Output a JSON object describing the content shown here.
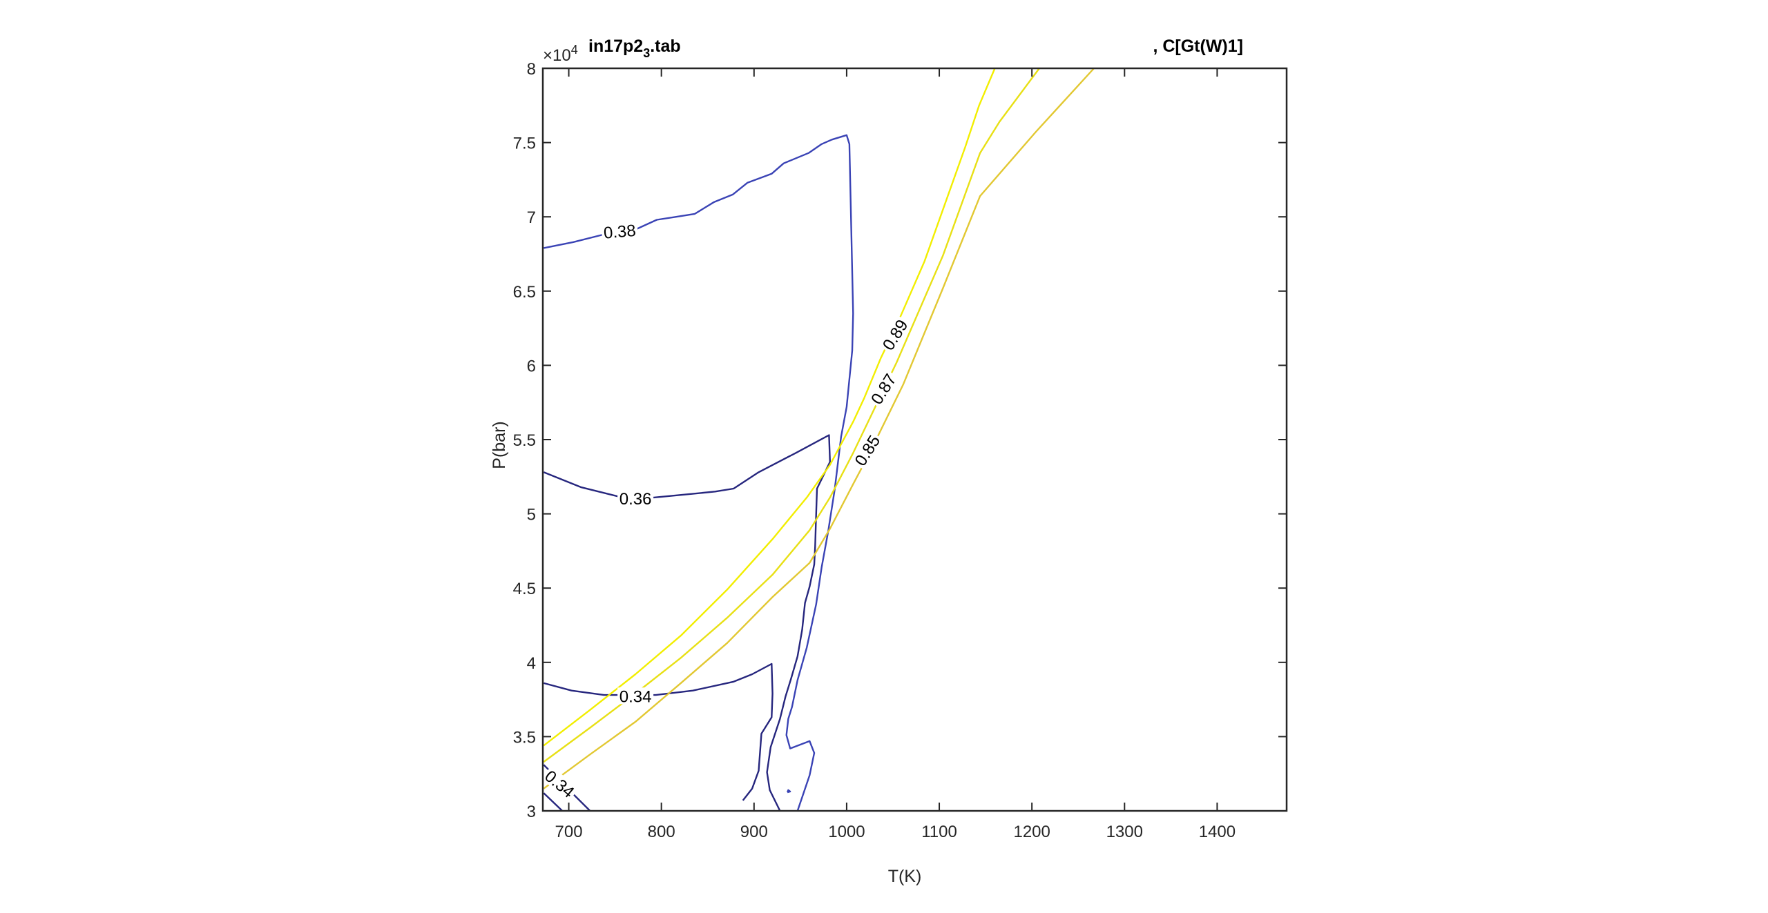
{
  "chart_data": {
    "type": "line",
    "subtype": "contour",
    "title_left": "in17p2",
    "title_left_subscript": "3",
    "title_left_suffix": ".tab",
    "title_right": ", C[Gt(W)1]",
    "xlabel": "T(K)",
    "ylabel": "P(bar)",
    "y_multiplier_base": "×10",
    "y_multiplier_exp": "4",
    "xlim": [
      672,
      1475
    ],
    "ylim": [
      3,
      8
    ],
    "xticks": [
      "700",
      "800",
      "900",
      "1000",
      "1100",
      "1200",
      "1300",
      "1400"
    ],
    "yticks": [
      "3",
      "3.5",
      "4",
      "4.5",
      "5",
      "5.5",
      "6",
      "6.5",
      "7",
      "7.5",
      "8"
    ],
    "grid": false,
    "colors": {
      "blue_light": "#3a43b5",
      "blue_dark": "#26267e",
      "yellow_89": "#f2ee00",
      "yellow_87": "#e8e015",
      "yellow_85": "#e2c832"
    },
    "series": [
      {
        "name": "0.38",
        "color_key": "blue_light",
        "points": [
          [
            673,
            6.79
          ],
          [
            705,
            6.83
          ],
          [
            737,
            6.88
          ],
          [
            774,
            6.92
          ],
          [
            795,
            6.98
          ],
          [
            816,
            7.0
          ],
          [
            836,
            7.02
          ],
          [
            857,
            7.1
          ],
          [
            877,
            7.15
          ],
          [
            893,
            7.23
          ],
          [
            919,
            7.29
          ],
          [
            932,
            7.36
          ],
          [
            959,
            7.43
          ],
          [
            973,
            7.49
          ],
          [
            984,
            7.52
          ],
          [
            1000,
            7.55
          ],
          [
            1003,
            7.49
          ],
          [
            1007,
            6.35
          ],
          [
            1006,
            6.1
          ],
          [
            1000,
            5.72
          ],
          [
            994,
            5.52
          ],
          [
            987,
            5.16
          ],
          [
            980,
            4.88
          ],
          [
            973,
            4.64
          ],
          [
            967,
            4.39
          ],
          [
            957,
            4.1
          ],
          [
            947,
            3.88
          ],
          [
            941,
            3.7
          ],
          [
            937,
            3.62
          ],
          [
            935,
            3.51
          ],
          [
            939,
            3.42
          ],
          [
            960,
            3.47
          ],
          [
            965,
            3.39
          ],
          [
            960,
            3.24
          ],
          [
            947,
            3.0
          ]
        ]
      },
      {
        "name": "0.36",
        "color_key": "blue_dark",
        "points": [
          [
            673,
            5.28
          ],
          [
            713,
            5.18
          ],
          [
            755,
            5.115
          ],
          [
            792,
            5.11
          ],
          [
            826,
            5.13
          ],
          [
            858,
            5.15
          ],
          [
            878,
            5.17
          ],
          [
            905,
            5.28
          ],
          [
            945,
            5.41
          ],
          [
            981,
            5.53
          ],
          [
            982,
            5.35
          ],
          [
            968,
            5.17
          ],
          [
            967,
            4.99
          ],
          [
            966,
            4.78
          ],
          [
            965,
            4.66
          ],
          [
            960,
            4.51
          ],
          [
            955,
            4.4
          ],
          [
            952,
            4.22
          ],
          [
            947,
            4.04
          ],
          [
            940,
            3.89
          ],
          [
            934,
            3.77
          ],
          [
            928,
            3.62
          ],
          [
            918,
            3.43
          ],
          [
            914,
            3.26
          ],
          [
            917,
            3.14
          ],
          [
            928,
            3.0
          ]
        ]
      },
      {
        "name": "0.34",
        "color_key": "blue_dark",
        "points": [
          [
            673,
            3.86
          ],
          [
            703,
            3.81
          ],
          [
            738,
            3.78
          ],
          [
            794,
            3.78
          ],
          [
            834,
            3.81
          ],
          [
            878,
            3.87
          ],
          [
            898,
            3.92
          ],
          [
            919,
            3.99
          ],
          [
            920,
            3.79
          ],
          [
            919,
            3.63
          ],
          [
            908,
            3.52
          ],
          [
            905,
            3.27
          ],
          [
            898,
            3.15
          ],
          [
            888,
            3.07
          ]
        ]
      },
      {
        "name": "0.34 (lower-left a)",
        "color_key": "blue_dark",
        "points": [
          [
            673,
            3.31
          ],
          [
            723,
            3.0
          ]
        ]
      },
      {
        "name": "0.34 (lower-left b)",
        "color_key": "blue_dark",
        "points": [
          [
            673,
            3.12
          ],
          [
            693,
            3.0
          ]
        ]
      },
      {
        "name": "small loop",
        "color_key": "blue_light",
        "points": [
          [
            936,
            3.125
          ],
          [
            939,
            3.13
          ],
          [
            937,
            3.14
          ],
          [
            936,
            3.125
          ]
        ]
      },
      {
        "name": "0.89",
        "color_key": "yellow_89",
        "points": [
          [
            673,
            3.44
          ],
          [
            723,
            3.68
          ],
          [
            772,
            3.92
          ],
          [
            821,
            4.18
          ],
          [
            871,
            4.49
          ],
          [
            920,
            4.83
          ],
          [
            957,
            5.11
          ],
          [
            982,
            5.33
          ],
          [
            1007,
            5.62
          ],
          [
            1019,
            5.78
          ],
          [
            1037,
            6.05
          ],
          [
            1054,
            6.27
          ],
          [
            1084,
            6.7
          ],
          [
            1128,
            7.47
          ],
          [
            1143,
            7.75
          ],
          [
            1160,
            8.0
          ]
        ]
      },
      {
        "name": "0.87",
        "color_key": "yellow_87",
        "points": [
          [
            673,
            3.33
          ],
          [
            723,
            3.56
          ],
          [
            772,
            3.79
          ],
          [
            821,
            4.03
          ],
          [
            871,
            4.3
          ],
          [
            920,
            4.59
          ],
          [
            960,
            4.89
          ],
          [
            982,
            5.11
          ],
          [
            1007,
            5.41
          ],
          [
            1054,
            6.02
          ],
          [
            1104,
            6.74
          ],
          [
            1144,
            7.43
          ],
          [
            1165,
            7.64
          ],
          [
            1208,
            8.0
          ]
        ]
      },
      {
        "name": "0.85",
        "color_key": "yellow_85",
        "points": [
          [
            673,
            3.15
          ],
          [
            723,
            3.38
          ],
          [
            772,
            3.6
          ],
          [
            821,
            3.86
          ],
          [
            871,
            4.13
          ],
          [
            920,
            4.44
          ],
          [
            960,
            4.67
          ],
          [
            982,
            4.9
          ],
          [
            1007,
            5.2
          ],
          [
            1024,
            5.4
          ],
          [
            1061,
            5.87
          ],
          [
            1104,
            6.52
          ],
          [
            1144,
            7.14
          ],
          [
            1204,
            7.57
          ],
          [
            1267,
            8.0
          ]
        ]
      }
    ],
    "contour_labels": [
      {
        "text": "0.38",
        "at": [
          755,
          6.9
        ],
        "angle": -5
      },
      {
        "text": "0.36",
        "at": [
          772,
          5.1
        ],
        "angle": 0
      },
      {
        "text": "0.34",
        "at": [
          772,
          3.77
        ],
        "angle": 0
      },
      {
        "text": "0.34",
        "at": [
          690,
          3.18
        ],
        "angle": 40
      },
      {
        "text": "0.89",
        "at": [
          1028,
          5.96
        ],
        "angle": -58
      },
      {
        "text": "0.87",
        "at": [
          1040,
          5.84
        ],
        "angle": -58
      },
      {
        "text": "0.85",
        "at": [
          1047,
          5.67
        ],
        "angle": -58
      }
    ]
  }
}
